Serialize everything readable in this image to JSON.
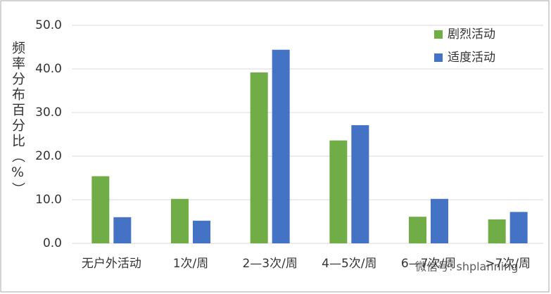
{
  "chart_data": {
    "type": "bar",
    "y_label": "频率分布百分比（%）",
    "categories": [
      "无户外活动",
      "1次/周",
      "2—3次/周",
      "4—5次/周",
      "6—7次/周",
      ">7次/周"
    ],
    "series": [
      {
        "name": "剧烈活动",
        "color": "#70ad47",
        "values": [
          15.4,
          10.2,
          39.2,
          23.6,
          6.1,
          5.5
        ]
      },
      {
        "name": "适度活动",
        "color": "#4472c4",
        "values": [
          6.0,
          5.2,
          44.4,
          27.1,
          10.2,
          7.2
        ]
      }
    ],
    "ylim": [
      0,
      50
    ],
    "yticks": [
      {
        "value": 0,
        "label": "0.0"
      },
      {
        "value": 10,
        "label": "10.0"
      },
      {
        "value": 20,
        "label": "20.0"
      },
      {
        "value": 30,
        "label": "30.0"
      },
      {
        "value": 40,
        "label": "40.0"
      },
      {
        "value": 50,
        "label": "50.0"
      }
    ],
    "grid": true,
    "legend": "top-right",
    "watermark": "微信号: shplanning"
  }
}
